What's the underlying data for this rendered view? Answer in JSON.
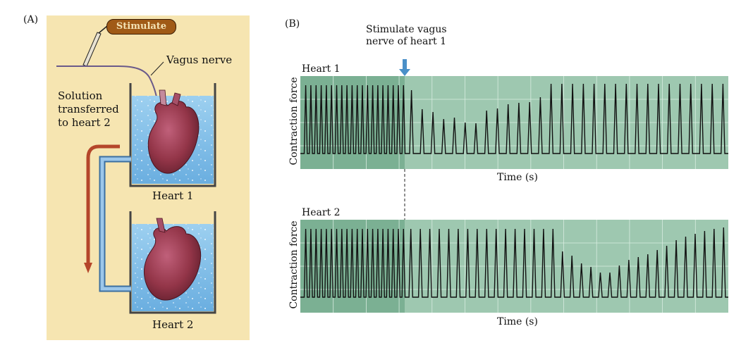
{
  "panel_a": {
    "letter": "(A)",
    "stimulate_button": "Stimulate",
    "vagus_label": "Vagus nerve",
    "solution_label_lines": [
      "Solution",
      "transferred",
      "to heart 2"
    ],
    "heart1_label": "Heart 1",
    "heart2_label": "Heart 2"
  },
  "panel_b": {
    "letter": "(B)",
    "annotation_lines": [
      "Stimulate vagus",
      "nerve of heart 1"
    ]
  },
  "colors": {
    "panel_a_bg": "#f6e5b1",
    "water": "#8fc3e6",
    "heart": "#9c3a4e",
    "trace_bg": "#9ec8b0",
    "trace_bg_dark": "#6fa889",
    "trace_line": "#111111",
    "arrow": "#4a90c8",
    "tube": "#b5462a"
  },
  "chart_data": [
    {
      "type": "line",
      "title": "Heart 1",
      "xlabel": "Time (s)",
      "ylabel": "Contraction force",
      "stimulus_beat_index": 20,
      "series": [
        {
          "values": [
            0.97,
            0.97,
            0.97,
            0.97,
            0.97,
            0.97,
            0.97,
            0.97,
            0.97,
            0.97,
            0.97,
            0.97,
            0.97,
            0.97,
            0.97,
            0.97,
            0.97,
            0.97,
            0.97,
            0.97,
            0.9,
            0.63,
            0.59,
            0.49,
            0.51,
            0.44,
            0.43,
            0.61,
            0.64,
            0.7,
            0.72,
            0.73,
            0.8,
            0.99,
            0.99,
            0.99,
            0.99,
            0.99,
            0.99,
            0.99,
            0.99,
            0.99,
            0.99,
            0.99,
            0.99,
            0.99,
            0.99,
            0.99,
            0.99,
            0.99
          ]
        }
      ]
    },
    {
      "type": "line",
      "title": "Heart 2",
      "xlabel": "Time (s)",
      "ylabel": "Contraction force",
      "stimulus_beat_index": 20,
      "series": [
        {
          "values": [
            0.97,
            0.97,
            0.97,
            0.97,
            0.97,
            0.97,
            0.97,
            0.97,
            0.97,
            0.97,
            0.97,
            0.97,
            0.97,
            0.97,
            0.97,
            0.97,
            0.97,
            0.97,
            0.97,
            0.97,
            0.97,
            0.97,
            0.97,
            0.97,
            0.97,
            0.97,
            0.97,
            0.97,
            0.97,
            0.97,
            0.97,
            0.97,
            0.97,
            0.97,
            0.97,
            0.97,
            0.65,
            0.59,
            0.48,
            0.43,
            0.35,
            0.35,
            0.45,
            0.53,
            0.57,
            0.61,
            0.67,
            0.73,
            0.81,
            0.86,
            0.9,
            0.94,
            0.97,
            0.99
          ]
        }
      ]
    }
  ]
}
